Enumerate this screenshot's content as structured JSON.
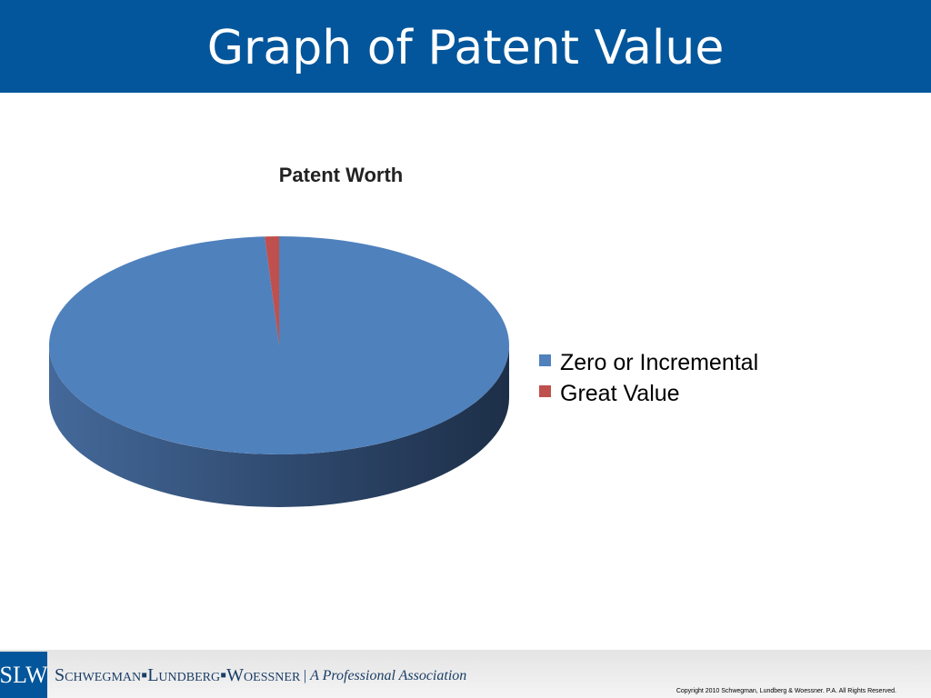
{
  "slide": {
    "title": "Graph of Patent Value"
  },
  "footer": {
    "logo": "SLW",
    "brand": "Schwegman▪Lundberg▪Woessner",
    "tagline": "| A Professional Association",
    "copyright": "Copyright 2010 Schwegman, Lundberg & Woessner.  P.A.  All Rights Reserved."
  },
  "chart_data": {
    "type": "pie",
    "title": "Patent Worth",
    "categories": [
      "Zero or Incremental",
      "Great Value"
    ],
    "values": [
      99,
      1
    ],
    "colors": [
      "#4f81bd",
      "#c0504d"
    ],
    "legend": "right"
  }
}
